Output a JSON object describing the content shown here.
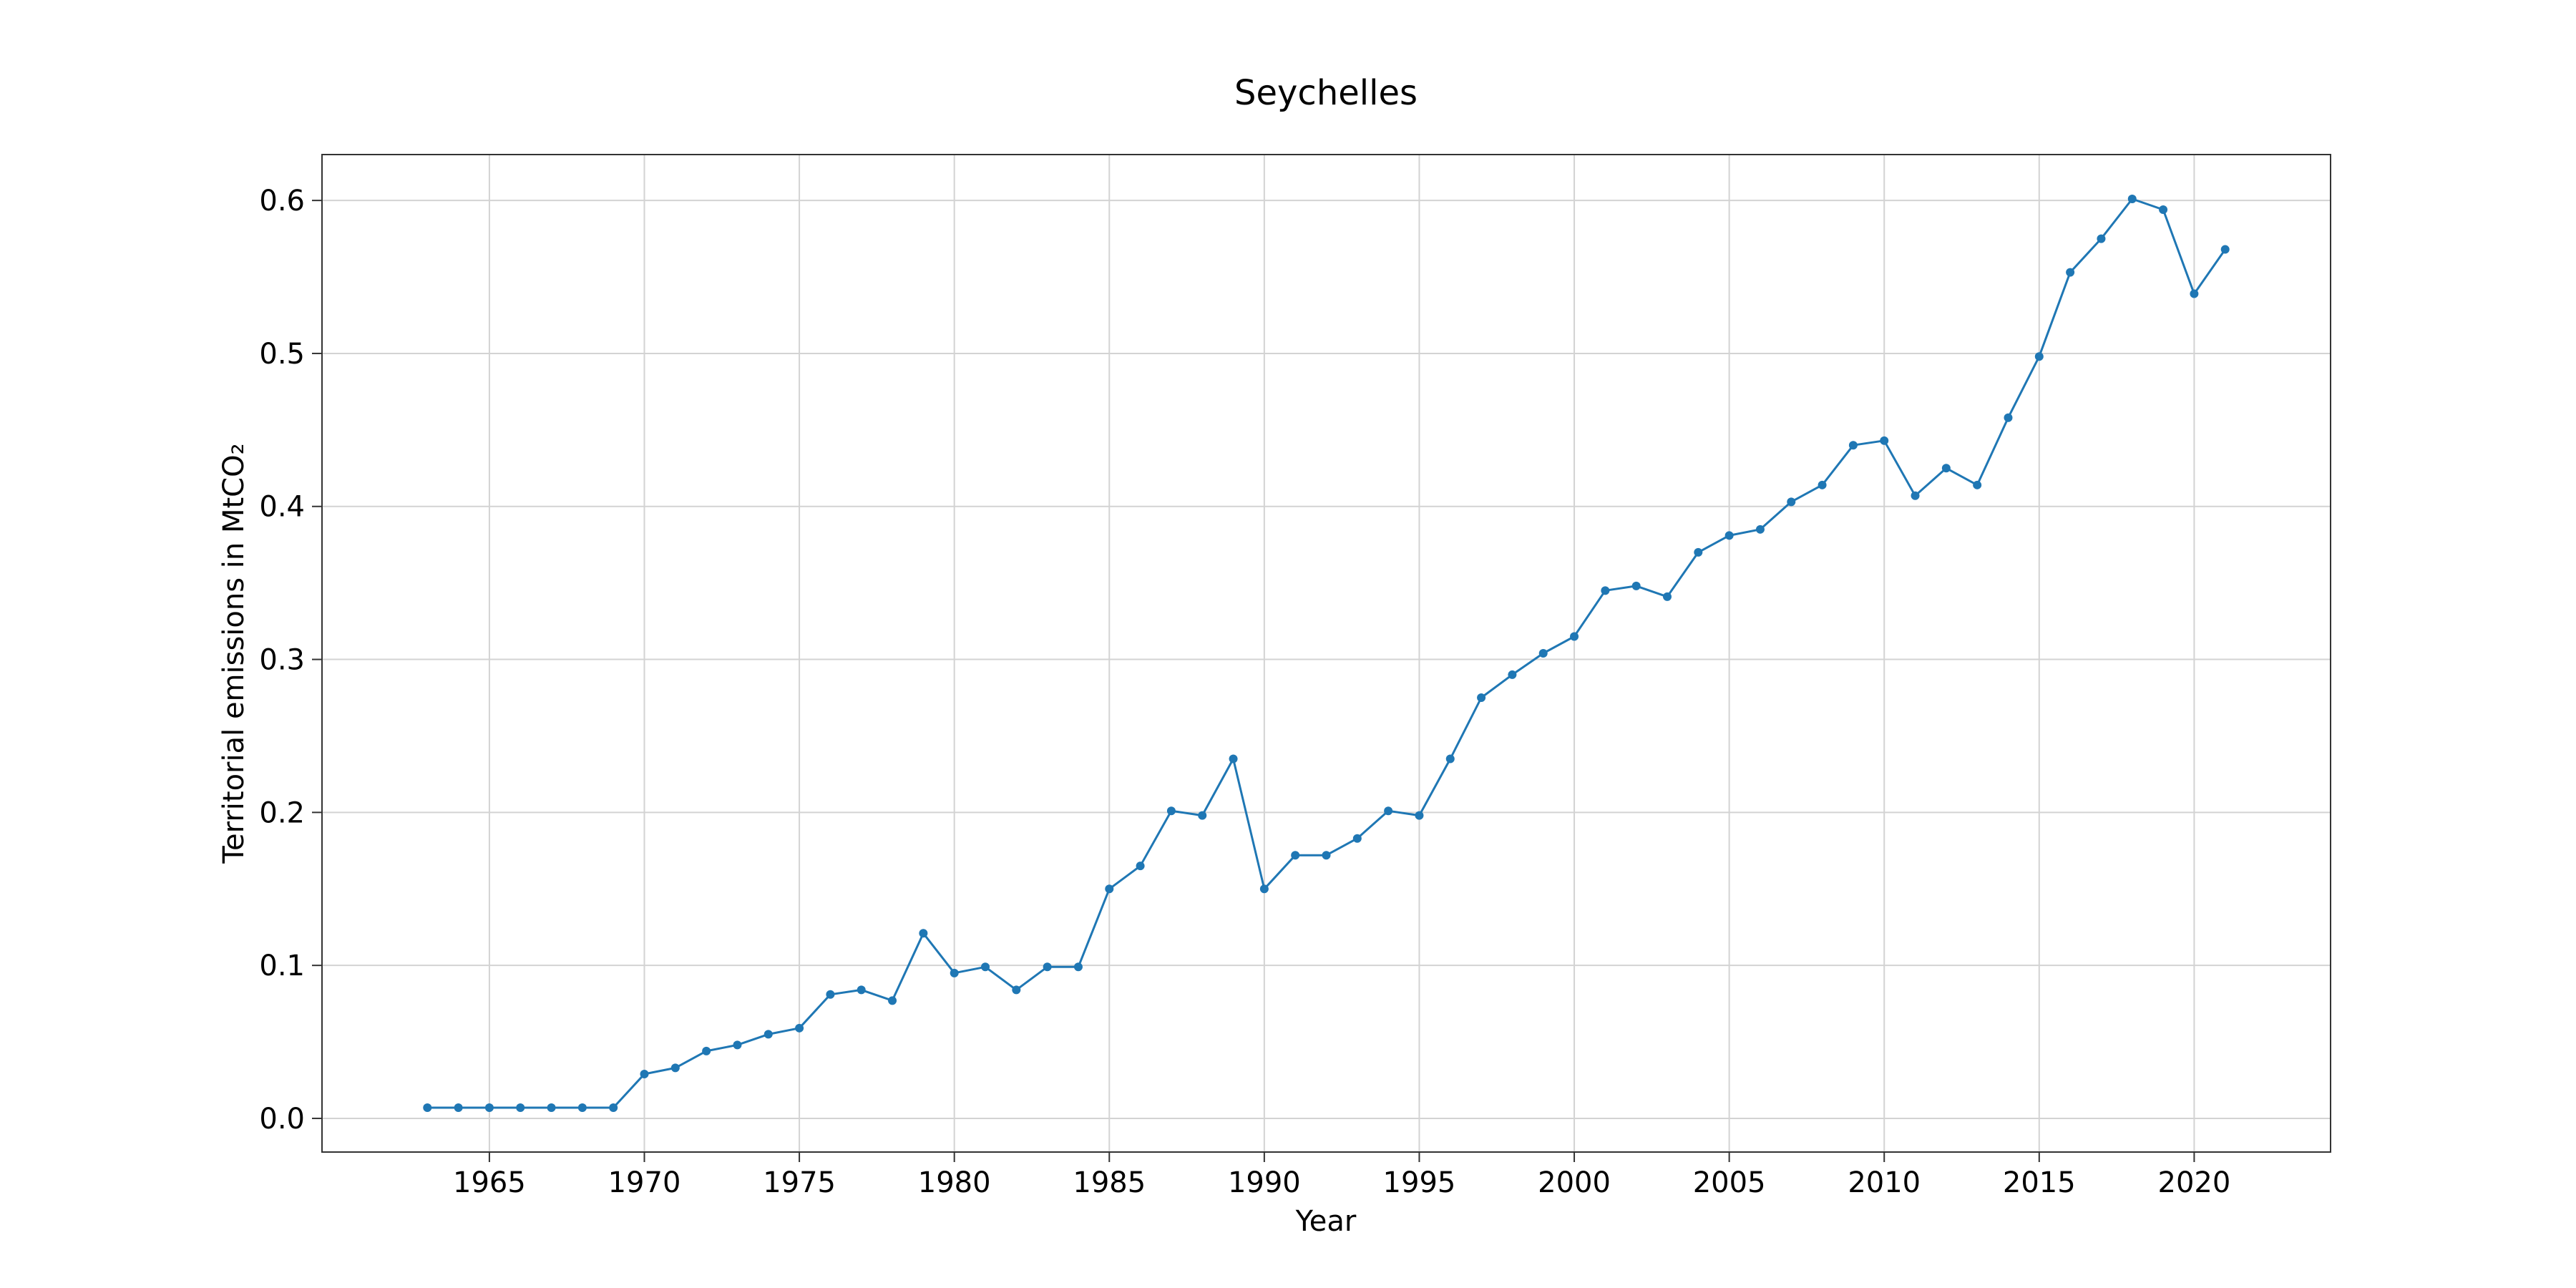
{
  "chart_data": {
    "type": "line",
    "title": "Seychelles",
    "xlabel": "Year",
    "ylabel": "Territorial emissions in MtCO₂",
    "xlim": [
      1959.6,
      2024.4
    ],
    "ylim": [
      -0.022,
      0.63
    ],
    "xticks": [
      1965,
      1970,
      1975,
      1980,
      1985,
      1990,
      1995,
      2000,
      2005,
      2010,
      2015,
      2020
    ],
    "yticks": [
      0.0,
      0.1,
      0.2,
      0.3,
      0.4,
      0.5,
      0.6
    ],
    "xtick_labels": [
      "1965",
      "1970",
      "1975",
      "1980",
      "1985",
      "1990",
      "1995",
      "2000",
      "2005",
      "2010",
      "2015",
      "2020"
    ],
    "ytick_labels": [
      "0.0",
      "0.1",
      "0.2",
      "0.3",
      "0.4",
      "0.5",
      "0.6"
    ],
    "grid": true,
    "color": "#1f77b4",
    "series": [
      {
        "x": [
          1963,
          1964,
          1965,
          1966,
          1967,
          1968,
          1969,
          1970,
          1971,
          1972,
          1973,
          1974,
          1975,
          1976,
          1977,
          1978,
          1979,
          1980,
          1981,
          1982,
          1983,
          1984,
          1985,
          1986,
          1987,
          1988,
          1989,
          1990,
          1991,
          1992,
          1993,
          1994,
          1995,
          1996,
          1997,
          1998,
          1999,
          2000,
          2001,
          2002,
          2003,
          2004,
          2005,
          2006,
          2007,
          2008,
          2009,
          2010,
          2011,
          2012,
          2013,
          2014,
          2015,
          2016,
          2017,
          2018,
          2019,
          2020,
          2021
        ],
        "values": [
          0.007,
          0.007,
          0.007,
          0.007,
          0.007,
          0.007,
          0.007,
          0.029,
          0.033,
          0.044,
          0.048,
          0.055,
          0.059,
          0.081,
          0.084,
          0.077,
          0.121,
          0.095,
          0.099,
          0.084,
          0.099,
          0.099,
          0.15,
          0.165,
          0.201,
          0.198,
          0.235,
          0.15,
          0.172,
          0.172,
          0.183,
          0.201,
          0.198,
          0.235,
          0.275,
          0.29,
          0.304,
          0.315,
          0.345,
          0.348,
          0.341,
          0.37,
          0.381,
          0.385,
          0.403,
          0.414,
          0.44,
          0.443,
          0.407,
          0.425,
          0.414,
          0.458,
          0.498,
          0.553,
          0.575,
          0.601,
          0.594,
          0.539,
          0.568
        ]
      }
    ]
  }
}
